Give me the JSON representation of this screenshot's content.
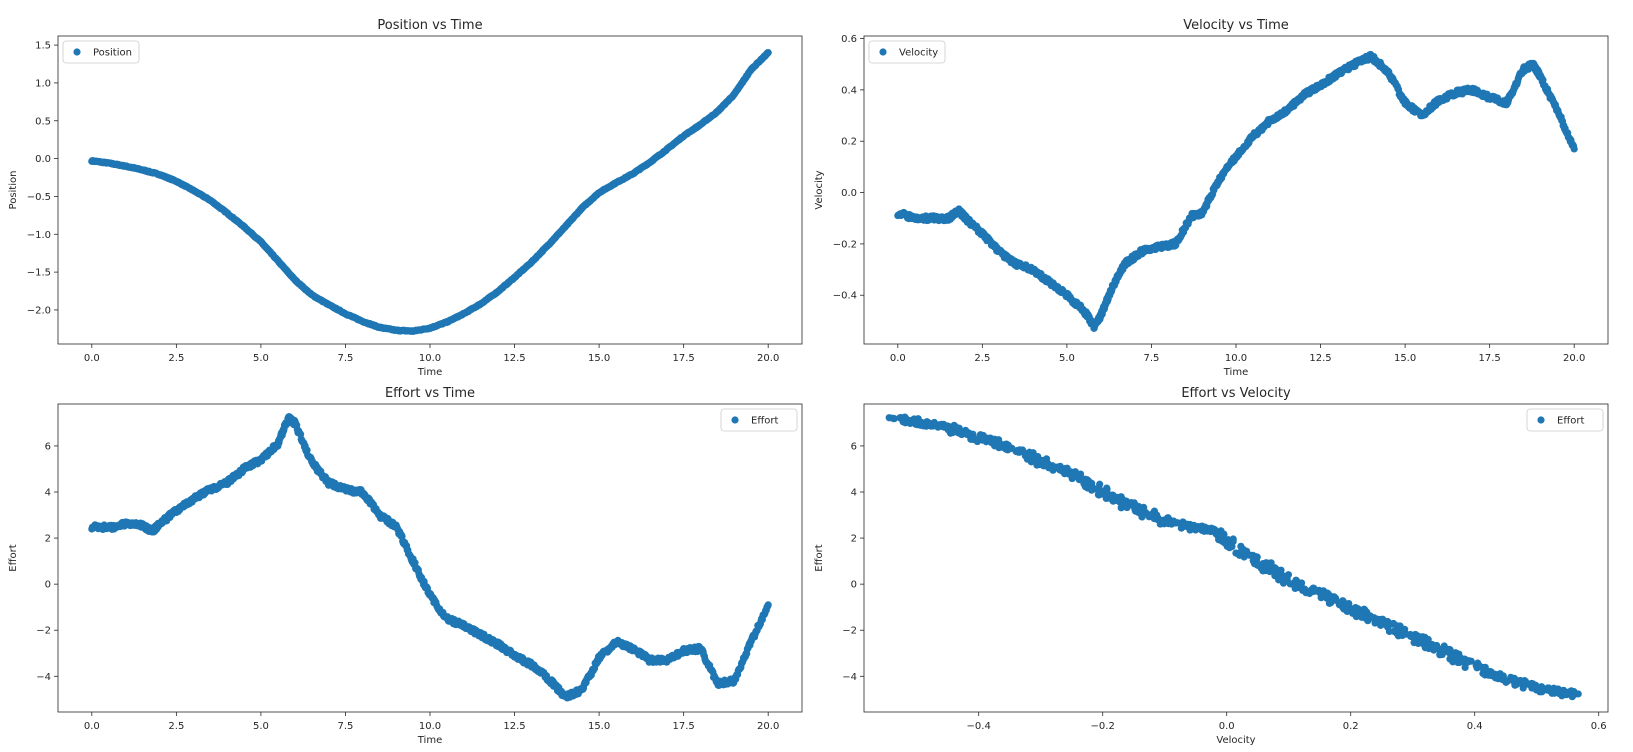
{
  "chart_data": [
    {
      "type": "scatter",
      "title": "Position vs Time",
      "xlabel": "Time",
      "ylabel": "Position",
      "xlim": [
        -1.0,
        21.0
      ],
      "ylim": [
        -2.45,
        1.62
      ],
      "xticks": [
        0.0,
        2.5,
        5.0,
        7.5,
        10.0,
        12.5,
        15.0,
        17.5,
        20.0
      ],
      "xtick_labels": [
        "0.0",
        "2.5",
        "5.0",
        "7.5",
        "10.0",
        "12.5",
        "15.0",
        "17.5",
        "20.0"
      ],
      "yticks": [
        -2.0,
        -1.5,
        -1.0,
        -0.5,
        0.0,
        0.5,
        1.0,
        1.5
      ],
      "ytick_labels": [
        "−2.0",
        "−1.5",
        "−1.0",
        "−0.5",
        "0.0",
        "0.5",
        "1.0",
        "1.5"
      ],
      "legend": {
        "placement": "upper-left",
        "entries": [
          "Position"
        ]
      },
      "grid": false,
      "color": "#1f77b4",
      "series": [
        {
          "name": "Position",
          "points": [
            [
              0.0,
              -0.03
            ],
            [
              0.5,
              -0.06
            ],
            [
              1.0,
              -0.1
            ],
            [
              1.5,
              -0.15
            ],
            [
              2.0,
              -0.21
            ],
            [
              2.5,
              -0.3
            ],
            [
              3.0,
              -0.42
            ],
            [
              3.5,
              -0.55
            ],
            [
              4.0,
              -0.72
            ],
            [
              4.5,
              -0.9
            ],
            [
              5.0,
              -1.1
            ],
            [
              5.5,
              -1.35
            ],
            [
              6.0,
              -1.6
            ],
            [
              6.5,
              -1.8
            ],
            [
              7.0,
              -1.93
            ],
            [
              7.5,
              -2.05
            ],
            [
              8.0,
              -2.15
            ],
            [
              8.5,
              -2.23
            ],
            [
              9.0,
              -2.27
            ],
            [
              9.5,
              -2.28
            ],
            [
              10.0,
              -2.24
            ],
            [
              10.5,
              -2.16
            ],
            [
              11.0,
              -2.05
            ],
            [
              11.5,
              -1.92
            ],
            [
              12.0,
              -1.76
            ],
            [
              12.5,
              -1.57
            ],
            [
              13.0,
              -1.37
            ],
            [
              13.5,
              -1.14
            ],
            [
              14.0,
              -0.9
            ],
            [
              14.5,
              -0.65
            ],
            [
              15.0,
              -0.45
            ],
            [
              15.5,
              -0.32
            ],
            [
              16.0,
              -0.2
            ],
            [
              16.5,
              -0.05
            ],
            [
              17.0,
              0.12
            ],
            [
              17.5,
              0.3
            ],
            [
              18.0,
              0.45
            ],
            [
              18.5,
              0.62
            ],
            [
              19.0,
              0.85
            ],
            [
              19.5,
              1.18
            ],
            [
              20.0,
              1.4
            ]
          ]
        }
      ]
    },
    {
      "type": "scatter",
      "title": "Velocity vs Time",
      "xlabel": "Time",
      "ylabel": "Velocity",
      "xlim": [
        -1.0,
        21.0
      ],
      "ylim": [
        -0.59,
        0.61
      ],
      "xticks": [
        0.0,
        2.5,
        5.0,
        7.5,
        10.0,
        12.5,
        15.0,
        17.5,
        20.0
      ],
      "xtick_labels": [
        "0.0",
        "2.5",
        "5.0",
        "7.5",
        "10.0",
        "12.5",
        "15.0",
        "17.5",
        "20.0"
      ],
      "yticks": [
        -0.4,
        -0.2,
        0.0,
        0.2,
        0.4,
        0.6
      ],
      "ytick_labels": [
        "−0.4",
        "−0.2",
        "0.0",
        "0.2",
        "0.4",
        "0.6"
      ],
      "legend": {
        "placement": "upper-left",
        "entries": [
          "Velocity"
        ]
      },
      "grid": false,
      "color": "#1f77b4",
      "series": [
        {
          "name": "Velocity",
          "points": [
            [
              0.0,
              -0.08
            ],
            [
              0.5,
              -0.1
            ],
            [
              1.0,
              -0.1
            ],
            [
              1.5,
              -0.1
            ],
            [
              1.8,
              -0.07
            ],
            [
              2.0,
              -0.1
            ],
            [
              2.5,
              -0.16
            ],
            [
              3.0,
              -0.23
            ],
            [
              3.5,
              -0.28
            ],
            [
              4.0,
              -0.3
            ],
            [
              4.5,
              -0.35
            ],
            [
              5.0,
              -0.4
            ],
            [
              5.5,
              -0.46
            ],
            [
              5.8,
              -0.52
            ],
            [
              6.0,
              -0.48
            ],
            [
              6.3,
              -0.38
            ],
            [
              6.7,
              -0.28
            ],
            [
              7.2,
              -0.23
            ],
            [
              7.8,
              -0.21
            ],
            [
              8.2,
              -0.2
            ],
            [
              8.7,
              -0.09
            ],
            [
              9.0,
              -0.08
            ],
            [
              9.5,
              0.05
            ],
            [
              10.0,
              0.14
            ],
            [
              10.5,
              0.22
            ],
            [
              11.0,
              0.28
            ],
            [
              11.5,
              0.32
            ],
            [
              12.0,
              0.38
            ],
            [
              12.5,
              0.42
            ],
            [
              13.0,
              0.46
            ],
            [
              13.5,
              0.5
            ],
            [
              14.0,
              0.53
            ],
            [
              14.5,
              0.47
            ],
            [
              15.0,
              0.35
            ],
            [
              15.5,
              0.3
            ],
            [
              16.0,
              0.36
            ],
            [
              16.5,
              0.39
            ],
            [
              17.0,
              0.4
            ],
            [
              17.5,
              0.37
            ],
            [
              18.0,
              0.35
            ],
            [
              18.5,
              0.48
            ],
            [
              18.8,
              0.5
            ],
            [
              19.0,
              0.45
            ],
            [
              19.5,
              0.32
            ],
            [
              20.0,
              0.17
            ]
          ]
        }
      ]
    },
    {
      "type": "scatter",
      "title": "Effort vs Time",
      "xlabel": "Time",
      "ylabel": "Effort",
      "xlim": [
        -1.0,
        21.0
      ],
      "ylim": [
        -5.55,
        7.82
      ],
      "xticks": [
        0.0,
        2.5,
        5.0,
        7.5,
        10.0,
        12.5,
        15.0,
        17.5,
        20.0
      ],
      "xtick_labels": [
        "0.0",
        "2.5",
        "5.0",
        "7.5",
        "10.0",
        "12.5",
        "15.0",
        "17.5",
        "20.0"
      ],
      "yticks": [
        -4,
        -2,
        0,
        2,
        4,
        6
      ],
      "ytick_labels": [
        "−4",
        "−2",
        "0",
        "2",
        "4",
        "6"
      ],
      "legend": {
        "placement": "upper-right",
        "entries": [
          "Effort"
        ]
      },
      "grid": false,
      "color": "#1f77b4",
      "series": [
        {
          "name": "Effort",
          "points": [
            [
              0.0,
              2.5
            ],
            [
              0.5,
              2.45
            ],
            [
              1.0,
              2.6
            ],
            [
              1.5,
              2.55
            ],
            [
              1.8,
              2.3
            ],
            [
              2.0,
              2.6
            ],
            [
              2.5,
              3.2
            ],
            [
              3.0,
              3.7
            ],
            [
              3.5,
              4.1
            ],
            [
              4.0,
              4.4
            ],
            [
              4.5,
              5.0
            ],
            [
              5.0,
              5.4
            ],
            [
              5.5,
              6.1
            ],
            [
              5.8,
              7.2
            ],
            [
              6.0,
              7.0
            ],
            [
              6.5,
              5.3
            ],
            [
              7.0,
              4.4
            ],
            [
              7.5,
              4.1
            ],
            [
              8.0,
              4.0
            ],
            [
              8.5,
              3.0
            ],
            [
              9.0,
              2.5
            ],
            [
              9.5,
              1.0
            ],
            [
              10.0,
              -0.5
            ],
            [
              10.5,
              -1.5
            ],
            [
              11.0,
              -1.8
            ],
            [
              11.5,
              -2.2
            ],
            [
              12.0,
              -2.6
            ],
            [
              12.5,
              -3.1
            ],
            [
              13.0,
              -3.5
            ],
            [
              13.5,
              -4.1
            ],
            [
              14.0,
              -4.9
            ],
            [
              14.5,
              -4.6
            ],
            [
              15.0,
              -3.2
            ],
            [
              15.5,
              -2.5
            ],
            [
              16.0,
              -2.8
            ],
            [
              16.5,
              -3.3
            ],
            [
              17.0,
              -3.3
            ],
            [
              17.5,
              -2.9
            ],
            [
              18.0,
              -2.8
            ],
            [
              18.5,
              -4.3
            ],
            [
              19.0,
              -4.2
            ],
            [
              19.5,
              -2.5
            ],
            [
              20.0,
              -0.9
            ]
          ]
        }
      ]
    },
    {
      "type": "scatter",
      "title": "Effort vs Velocity",
      "xlabel": "Velocity",
      "ylabel": "Effort",
      "xlim": [
        -0.585,
        0.615
      ],
      "ylim": [
        -5.55,
        7.82
      ],
      "xticks": [
        -0.4,
        -0.2,
        0.0,
        0.2,
        0.4,
        0.6
      ],
      "xtick_labels": [
        "−0.4",
        "−0.2",
        "0.0",
        "0.2",
        "0.4",
        "0.6"
      ],
      "yticks": [
        -4,
        -2,
        0,
        2,
        4,
        6
      ],
      "ytick_labels": [
        "−4",
        "−2",
        "0",
        "2",
        "4",
        "6"
      ],
      "legend": {
        "placement": "upper-right",
        "entries": [
          "Effort"
        ]
      },
      "grid": false,
      "color": "#1f77b4",
      "series": [
        {
          "name": "Effort",
          "points": [
            [
              -0.53,
              7.2
            ],
            [
              -0.5,
              7.0
            ],
            [
              -0.46,
              6.9
            ],
            [
              -0.42,
              6.5
            ],
            [
              -0.38,
              6.2
            ],
            [
              -0.34,
              5.8
            ],
            [
              -0.3,
              5.3
            ],
            [
              -0.26,
              4.9
            ],
            [
              -0.22,
              4.3
            ],
            [
              -0.18,
              3.7
            ],
            [
              -0.14,
              3.2
            ],
            [
              -0.1,
              2.7
            ],
            [
              -0.06,
              2.5
            ],
            [
              -0.02,
              2.3
            ],
            [
              0.02,
              1.5
            ],
            [
              0.06,
              0.8
            ],
            [
              0.1,
              0.2
            ],
            [
              0.14,
              -0.3
            ],
            [
              0.18,
              -0.8
            ],
            [
              0.22,
              -1.3
            ],
            [
              0.26,
              -1.8
            ],
            [
              0.3,
              -2.3
            ],
            [
              0.34,
              -2.8
            ],
            [
              0.38,
              -3.3
            ],
            [
              0.42,
              -3.8
            ],
            [
              0.46,
              -4.2
            ],
            [
              0.5,
              -4.5
            ],
            [
              0.54,
              -4.7
            ],
            [
              0.56,
              -4.8
            ]
          ]
        }
      ]
    }
  ]
}
